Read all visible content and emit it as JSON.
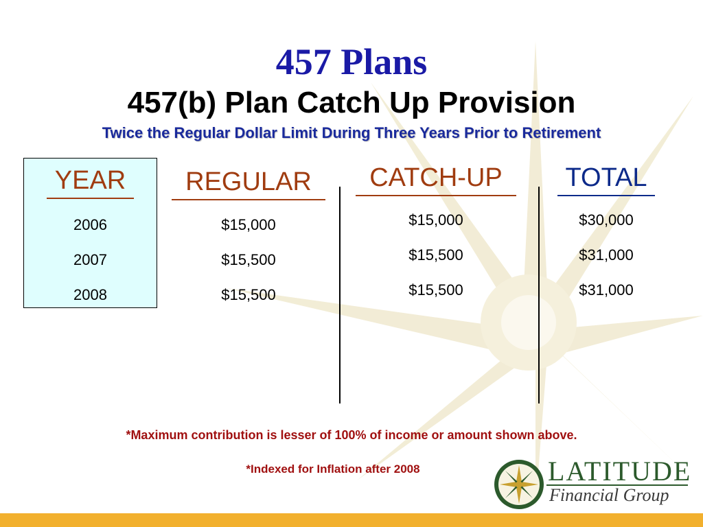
{
  "slide": {
    "title": "457 Plans",
    "subtitle": "457(b) Plan Catch Up Provision",
    "tagline": "Twice the Regular Dollar Limit During Three Years Prior to Retirement"
  },
  "colors": {
    "title": "#1a1aa6",
    "header_orange": "#a03c10",
    "header_blue": "#0d2a8a",
    "year_box_fill": "#dffefe",
    "note_red": "#a01010",
    "bottom_bar": "#f2b02e",
    "compass": "#efe7c8"
  },
  "table": {
    "year": {
      "header": "YEAR",
      "values": [
        "2006",
        "2007",
        "2008"
      ]
    },
    "regular": {
      "header": "REGULAR",
      "values": [
        "$15,000",
        "$15,500",
        "$15,500"
      ]
    },
    "catchup": {
      "header": "CATCH-UP",
      "values": [
        "$15,000",
        "$15,500",
        "$15,500"
      ]
    },
    "total": {
      "header": "TOTAL",
      "values": [
        "$30,000",
        "$31,000",
        "$31,000"
      ]
    }
  },
  "notes": {
    "max_contribution": "*Maximum contribution is lesser of 100% of income or amount shown above.",
    "indexed": "*Indexed for Inflation after 2008"
  },
  "logo": {
    "name": "LATITUDE",
    "tagline": "Financial Group",
    "icon": "compass-rose-icon"
  }
}
